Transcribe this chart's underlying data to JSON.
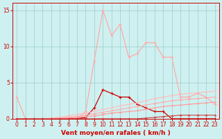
{
  "x": [
    0,
    1,
    2,
    3,
    4,
    5,
    6,
    7,
    8,
    9,
    10,
    11,
    12,
    13,
    14,
    15,
    16,
    17,
    18,
    19,
    20,
    21,
    22,
    23
  ],
  "line_rafales": [
    3,
    0,
    0,
    0,
    0,
    0,
    0,
    0,
    1,
    8,
    15,
    11.5,
    13,
    8.5,
    9,
    10.5,
    10.5,
    8.5,
    8.5,
    3,
    3,
    3.5,
    3,
    2
  ],
  "line_moyen": [
    0,
    0,
    0,
    0,
    0,
    0,
    0,
    0,
    0.2,
    1.5,
    4,
    3.5,
    3,
    3,
    2,
    1.5,
    1,
    1,
    0,
    0,
    0,
    0,
    0,
    0
  ],
  "line_c1": [
    0,
    0,
    0,
    0,
    0.1,
    0.2,
    0.4,
    0.6,
    0.8,
    1.0,
    1.3,
    1.5,
    1.8,
    2.0,
    2.2,
    2.5,
    2.8,
    3.0,
    3.2,
    3.4,
    3.5,
    3.6,
    3.7,
    3.8
  ],
  "line_c2": [
    0,
    0,
    0,
    0,
    0.05,
    0.1,
    0.2,
    0.3,
    0.5,
    0.7,
    0.9,
    1.1,
    1.3,
    1.5,
    1.7,
    1.9,
    2.1,
    2.3,
    2.5,
    2.6,
    2.7,
    2.8,
    2.9,
    3.0
  ],
  "line_c3": [
    0,
    0,
    0,
    0,
    0,
    0,
    0.1,
    0.2,
    0.3,
    0.4,
    0.6,
    0.8,
    0.9,
    1.0,
    1.1,
    1.3,
    1.5,
    1.7,
    1.8,
    1.9,
    2.0,
    2.1,
    2.2,
    2.3
  ],
  "line_c4": [
    0,
    0,
    0,
    0,
    0,
    0,
    0,
    0,
    0,
    0,
    0,
    0,
    0,
    0,
    0,
    0.1,
    0.2,
    0.3,
    0.4,
    0.5,
    0.5,
    0.5,
    0.5,
    0.5
  ],
  "background_color": "#cff0f0",
  "grid_color": "#99cccc",
  "color_rafales": "#ffaaaa",
  "color_moyen": "#cc0000",
  "color_c1": "#ffbbbb",
  "color_c2": "#ffaaaa",
  "color_c3": "#ff9999",
  "color_c4": "#cc4444",
  "xlabel": "Vent moyen/en rafales ( km/h )",
  "ylim": [
    0,
    16
  ],
  "xlim": [
    -0.5,
    23.5
  ],
  "yticks": [
    0,
    5,
    10,
    15
  ],
  "xticks": [
    0,
    1,
    2,
    3,
    4,
    5,
    6,
    7,
    8,
    9,
    10,
    11,
    12,
    13,
    14,
    15,
    16,
    17,
    18,
    19,
    20,
    21,
    22,
    23
  ]
}
